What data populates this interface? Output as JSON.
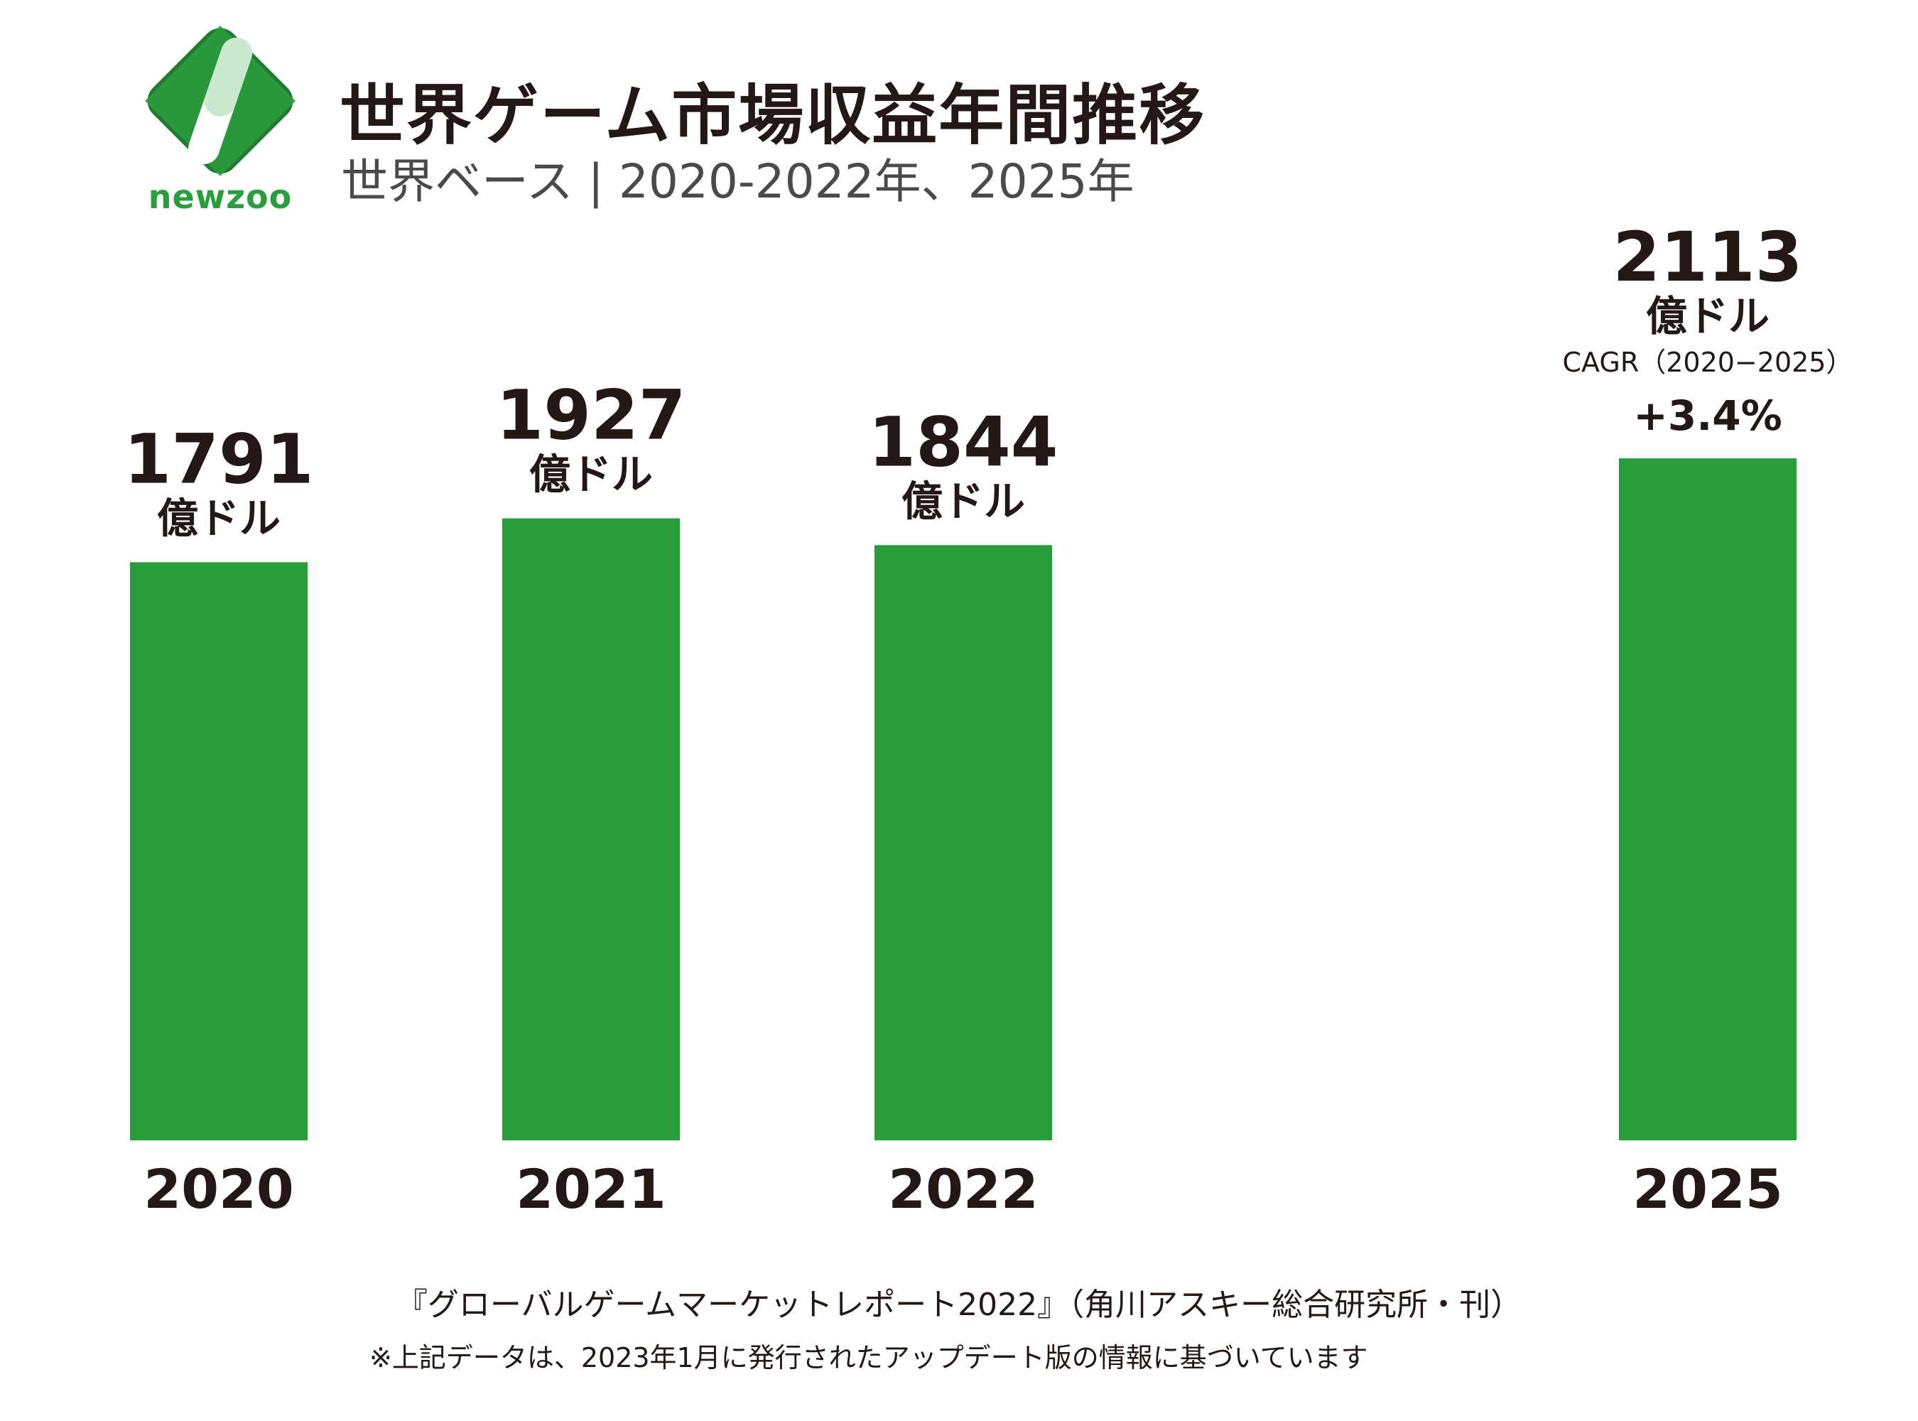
{
  "brand": {
    "name": "newzoo",
    "color": "#2a9d3c"
  },
  "header": {
    "title": "世界ゲーム市場収益年間推移",
    "subtitle": "世界ベース | 2020-2022年、2025年"
  },
  "chart_data": {
    "type": "bar",
    "title": "世界ゲーム市場収益年間推移",
    "categories": [
      "2020",
      "2021",
      "2022",
      "2025"
    ],
    "values": [
      1791,
      1927,
      1844,
      2113
    ],
    "value_labels": [
      "1791",
      "1927",
      "1844",
      "2113"
    ],
    "unit": "億ドル",
    "bar_color": "#2a9d3c",
    "annotations": [
      {
        "category": "2025",
        "label": "CAGR（2020−2025）",
        "value": "+3.4%"
      }
    ],
    "xlabel": "",
    "ylabel": "",
    "ylim": [
      0,
      2300
    ],
    "grid": false
  },
  "footer": {
    "source": "『グローバルゲームマーケットレポート2022』（角川アスキー総合研究所・刊）",
    "note": "※上記データは、2023年1月に発行されたアップデート版の情報に基づいています"
  }
}
